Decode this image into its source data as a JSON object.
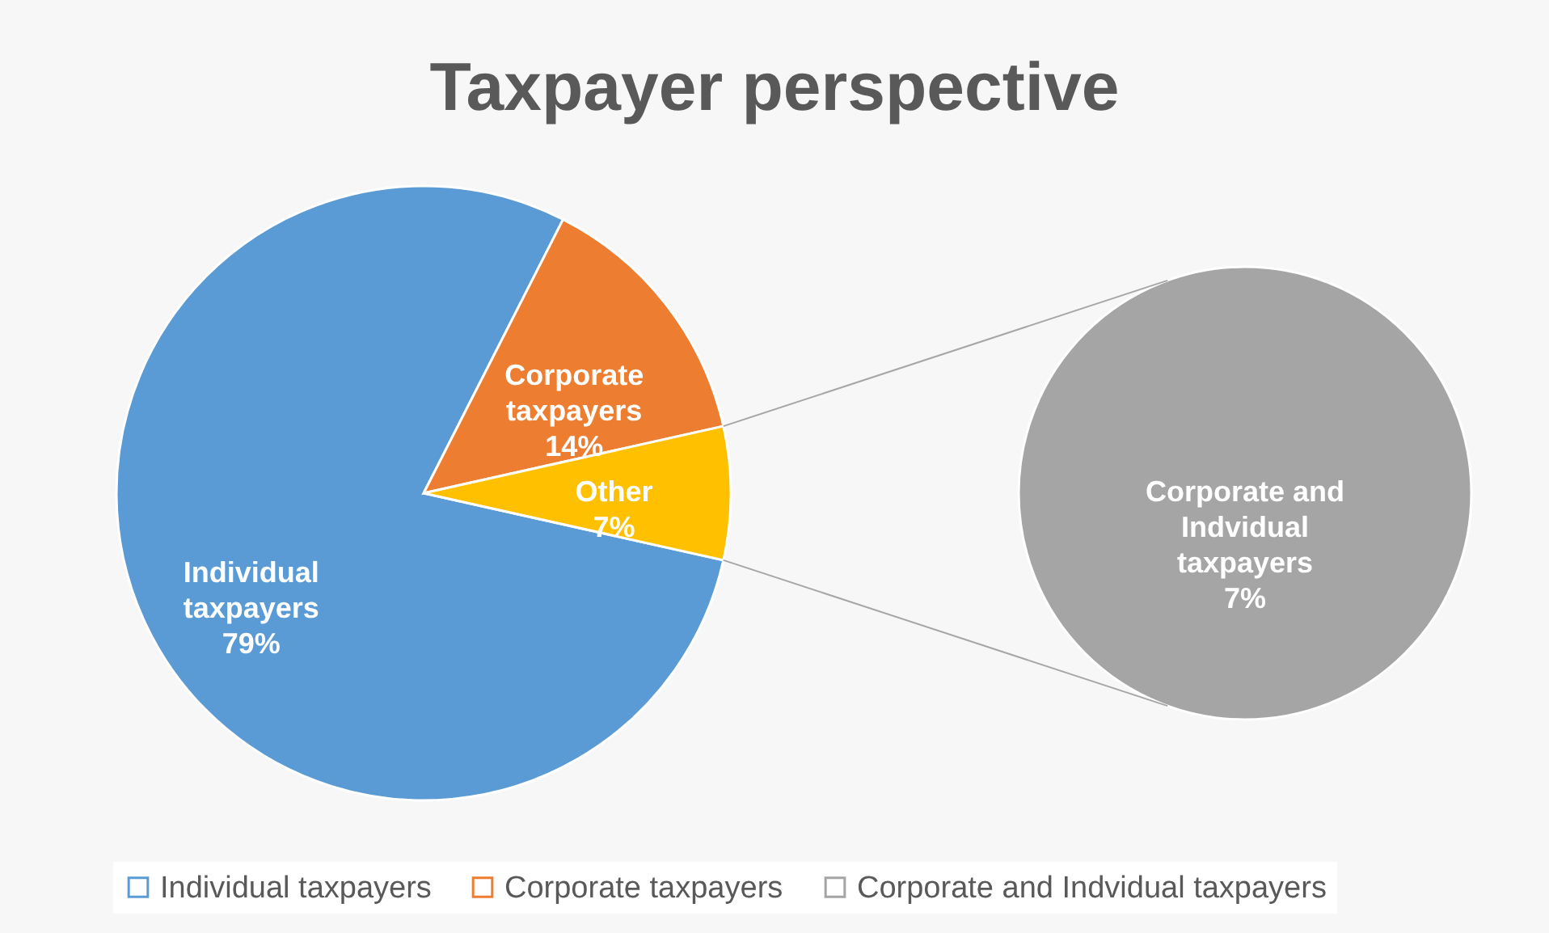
{
  "chart_data": [
    {
      "type": "pie",
      "title": "Taxpayer perspective",
      "categories": [
        "Individual taxpayers",
        "Corporate taxpayers",
        "Other"
      ],
      "values": [
        79,
        14,
        7
      ],
      "colors": [
        "#5b9bd5",
        "#ed7d31",
        "#ffc000"
      ],
      "value_labels": [
        "79%",
        "14%",
        "7%"
      ],
      "legend": "bottom"
    },
    {
      "type": "pie",
      "categories": [
        "Corporate and Indvidual taxpayers"
      ],
      "values": [
        7
      ],
      "colors": [
        "#a5a5a5"
      ],
      "value_labels": [
        "7%"
      ],
      "legend": "bottom"
    }
  ]
}
